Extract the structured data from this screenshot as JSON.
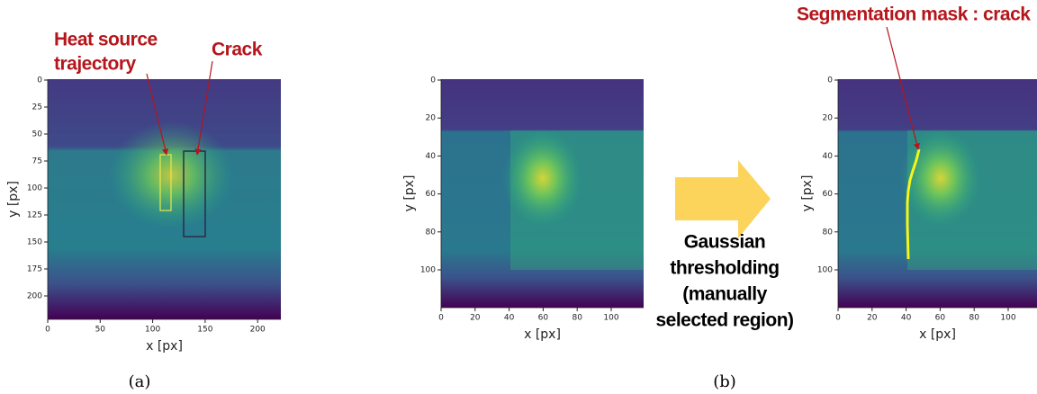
{
  "panel_a": {
    "annotations": {
      "heat_source": [
        "Heat source",
        "trajectory"
      ],
      "crack": "Crack"
    },
    "x_ticks": [
      0,
      50,
      100,
      150,
      200
    ],
    "y_ticks": [
      0,
      25,
      50,
      75,
      100,
      125,
      150,
      175,
      200
    ],
    "x_label": "x [px]",
    "y_label": "y [px]",
    "caption": "(a)"
  },
  "panel_b": {
    "input": {
      "x_ticks": [
        0,
        20,
        40,
        60,
        80,
        100
      ],
      "y_ticks": [
        0,
        20,
        40,
        60,
        80,
        100
      ],
      "x_label": "x [px]",
      "y_label": "y [px]"
    },
    "method": [
      "Gaussian",
      "thresholding",
      "(manually",
      "selected region)"
    ],
    "output": {
      "annotation": "Segmentation mask : crack",
      "x_ticks": [
        0,
        20,
        40,
        60,
        80,
        100
      ],
      "y_ticks": [
        0,
        20,
        40,
        60,
        80,
        100
      ],
      "x_label": "x [px]",
      "y_label": "y [px]"
    },
    "caption": "(b)"
  }
}
